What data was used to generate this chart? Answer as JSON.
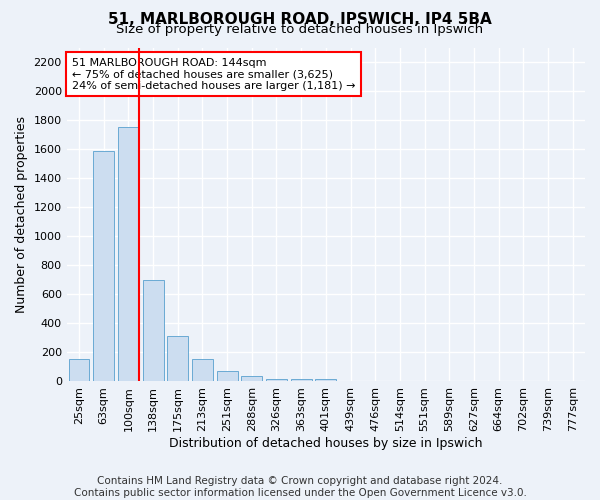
{
  "title_line1": "51, MARLBOROUGH ROAD, IPSWICH, IP4 5BA",
  "title_line2": "Size of property relative to detached houses in Ipswich",
  "xlabel": "Distribution of detached houses by size in Ipswich",
  "ylabel": "Number of detached properties",
  "categories": [
    "25sqm",
    "63sqm",
    "100sqm",
    "138sqm",
    "175sqm",
    "213sqm",
    "251sqm",
    "288sqm",
    "326sqm",
    "363sqm",
    "401sqm",
    "439sqm",
    "476sqm",
    "514sqm",
    "551sqm",
    "589sqm",
    "627sqm",
    "664sqm",
    "702sqm",
    "739sqm",
    "777sqm"
  ],
  "values": [
    155,
    1590,
    1750,
    700,
    315,
    155,
    75,
    40,
    20,
    20,
    20,
    0,
    0,
    0,
    0,
    0,
    0,
    0,
    0,
    0,
    0
  ],
  "bar_color": "#ccddf0",
  "bar_edge_color": "#6aaad4",
  "red_line_index": 2,
  "annotation_line1": "51 MARLBOROUGH ROAD: 144sqm",
  "annotation_line2": "← 75% of detached houses are smaller (3,625)",
  "annotation_line3": "24% of semi-detached houses are larger (1,181) →",
  "ylim": [
    0,
    2300
  ],
  "yticks": [
    0,
    200,
    400,
    600,
    800,
    1000,
    1200,
    1400,
    1600,
    1800,
    2000,
    2200
  ],
  "footer_line1": "Contains HM Land Registry data © Crown copyright and database right 2024.",
  "footer_line2": "Contains public sector information licensed under the Open Government Licence v3.0.",
  "background_color": "#edf2f9",
  "plot_bg_color": "#edf2f9",
  "grid_color": "#ffffff",
  "title_fontsize": 11,
  "subtitle_fontsize": 9.5,
  "axis_label_fontsize": 9,
  "tick_fontsize": 8,
  "footer_fontsize": 7.5,
  "annot_fontsize": 8
}
